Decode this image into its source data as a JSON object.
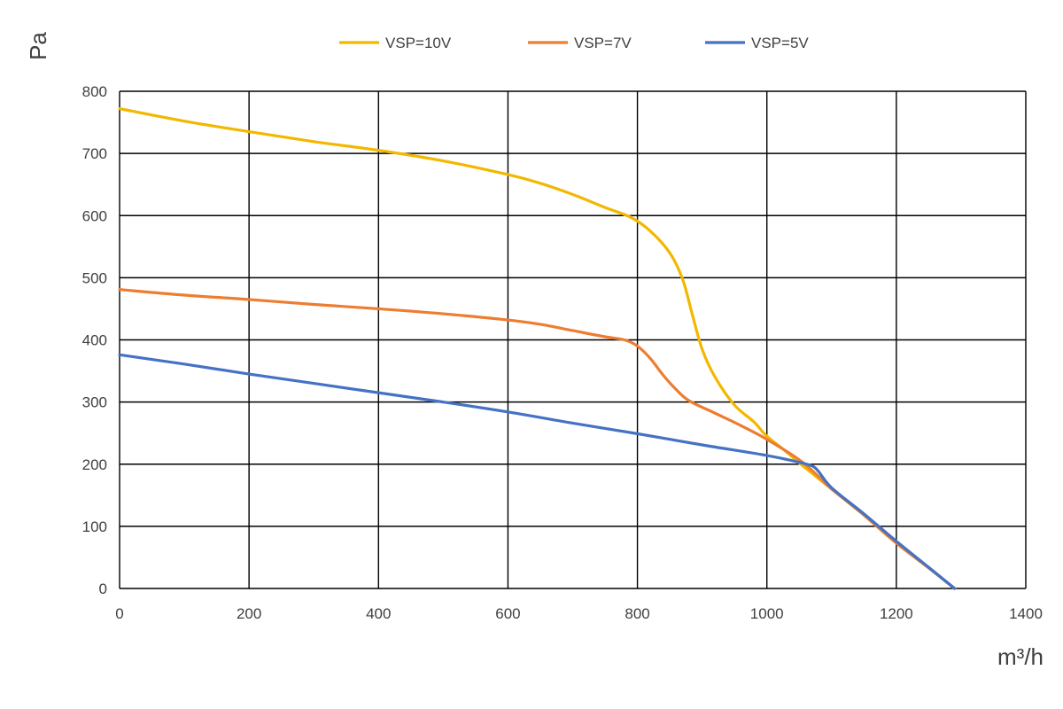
{
  "chart_data": {
    "type": "line",
    "title": "",
    "xlabel": "m³/h",
    "ylabel": "Pa",
    "xlim": [
      0,
      1400
    ],
    "ylim": [
      0,
      800
    ],
    "x_ticks": [
      "0",
      "200",
      "400",
      "600",
      "800",
      "1000",
      "1200",
      "1400"
    ],
    "y_ticks": [
      "0",
      "100",
      "200",
      "300",
      "400",
      "500",
      "600",
      "700",
      "800"
    ],
    "grid": true,
    "legend_position": "top",
    "series": [
      {
        "name": "VSP=10V",
        "color": "#F2B800",
        "points": [
          [
            0,
            772
          ],
          [
            100,
            752
          ],
          [
            200,
            735
          ],
          [
            300,
            719
          ],
          [
            400,
            705
          ],
          [
            500,
            688
          ],
          [
            600,
            666
          ],
          [
            650,
            652
          ],
          [
            700,
            634
          ],
          [
            750,
            613
          ],
          [
            790,
            597
          ],
          [
            820,
            575
          ],
          [
            850,
            540
          ],
          [
            870,
            497
          ],
          [
            885,
            440
          ],
          [
            900,
            385
          ],
          [
            920,
            340
          ],
          [
            950,
            295
          ],
          [
            980,
            268
          ],
          [
            1000,
            245
          ],
          [
            1030,
            220
          ],
          [
            1050,
            202
          ],
          [
            1100,
            160
          ],
          [
            1150,
            118
          ],
          [
            1200,
            73
          ],
          [
            1250,
            33
          ],
          [
            1290,
            0
          ]
        ]
      },
      {
        "name": "VSP=7V",
        "color": "#ED7D31",
        "points": [
          [
            0,
            481
          ],
          [
            100,
            472
          ],
          [
            200,
            465
          ],
          [
            300,
            457
          ],
          [
            400,
            450
          ],
          [
            500,
            442
          ],
          [
            600,
            432
          ],
          [
            650,
            425
          ],
          [
            700,
            415
          ],
          [
            750,
            405
          ],
          [
            780,
            400
          ],
          [
            800,
            390
          ],
          [
            820,
            370
          ],
          [
            840,
            343
          ],
          [
            860,
            320
          ],
          [
            880,
            302
          ],
          [
            920,
            282
          ],
          [
            960,
            262
          ],
          [
            1000,
            240
          ],
          [
            1050,
            207
          ],
          [
            1080,
            180
          ],
          [
            1100,
            160
          ],
          [
            1150,
            118
          ],
          [
            1200,
            73
          ],
          [
            1250,
            33
          ],
          [
            1290,
            0
          ]
        ]
      },
      {
        "name": "VSP=5V",
        "color": "#4472C4",
        "points": [
          [
            0,
            376
          ],
          [
            100,
            361
          ],
          [
            200,
            345
          ],
          [
            300,
            330
          ],
          [
            400,
            315
          ],
          [
            500,
            300
          ],
          [
            600,
            284
          ],
          [
            700,
            266
          ],
          [
            800,
            249
          ],
          [
            900,
            231
          ],
          [
            1000,
            214
          ],
          [
            1050,
            203
          ],
          [
            1070,
            197
          ],
          [
            1080,
            188
          ],
          [
            1100,
            162
          ],
          [
            1150,
            120
          ],
          [
            1200,
            76
          ],
          [
            1250,
            34
          ],
          [
            1290,
            0
          ]
        ]
      }
    ]
  }
}
